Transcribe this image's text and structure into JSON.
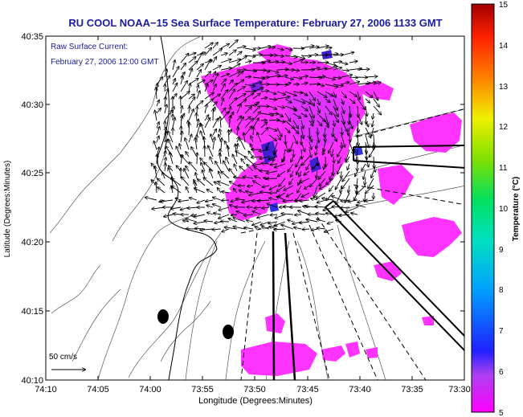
{
  "title": "RU COOL  NOAA−15  Sea Surface Temperature:  February 27, 2006 1133 GMT",
  "inset_line1": "Raw Surface Current:",
  "inset_line2": "February 27, 2006 12:00 GMT",
  "scale_label": "50 cm/s",
  "x_axis_label": "Longitude (Degrees:Minutes)",
  "y_axis_label": "Latitude (Degrees:Minutes)",
  "colorbar_label": "Temperature (°C)",
  "x_ticks": [
    "74:10",
    "74:05",
    "74:00",
    "73:55",
    "73:50",
    "73:45",
    "73:40",
    "73:35",
    "73:30"
  ],
  "y_ticks": [
    "40:35",
    "40:30",
    "40:25",
    "40:20",
    "40:15",
    "40:10"
  ],
  "colorbar_ticks": [
    "15",
    "14",
    "13",
    "12",
    "11",
    "10",
    "9",
    "8",
    "7",
    "6",
    "5"
  ],
  "colors": {
    "title": "#1a1aa0",
    "inset_text": "#1a1aa0",
    "sst_warm": "#ff33ff",
    "sst_cool": "#4020d0"
  },
  "colorbar_range": [
    5,
    15
  ]
}
